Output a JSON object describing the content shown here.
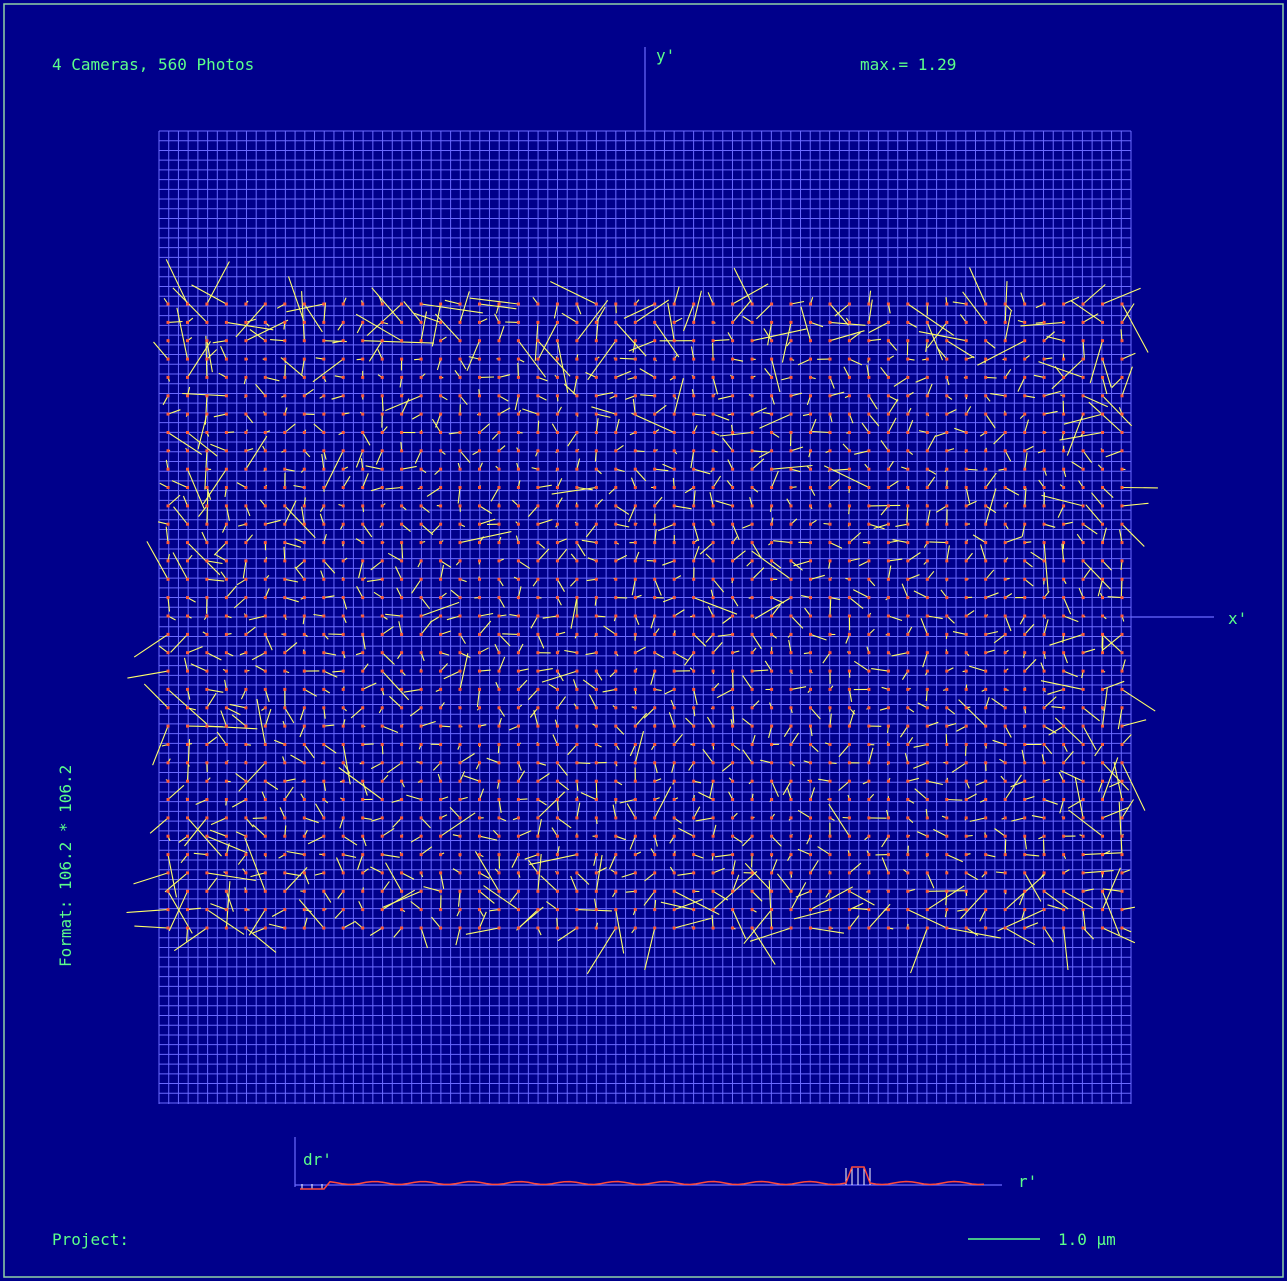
{
  "header": {
    "info": "4 Cameras, 560 Photos",
    "max_label": "max.= 1.29"
  },
  "axes": {
    "x_label": "x'",
    "y_label": "y'"
  },
  "format_label": "Format: 106.2 * 106.2",
  "footer": {
    "project_label": "Project:",
    "scale_label": "1.0 µm"
  },
  "radial_plot": {
    "y_label": "dr'",
    "x_label": "r'"
  },
  "colors": {
    "background": "#00008b",
    "grid": "#6a6aff",
    "frame": "#8fd1a6",
    "text": "#5cff8a",
    "vector": "#ffff6a",
    "point": "#ff5a3a",
    "radial_curve": "#ff4a3a"
  },
  "chart_data": {
    "type": "vector-field",
    "title": "",
    "format": "106.2 * 106.2",
    "max_residual": 1.29,
    "cameras": 4,
    "photos": 560,
    "scale_bar": "1.0 µm",
    "measurement_grid": {
      "columns": 50,
      "rows": 35
    },
    "radial_profile": {
      "xlabel": "r'",
      "ylabel": "dr'"
    }
  }
}
